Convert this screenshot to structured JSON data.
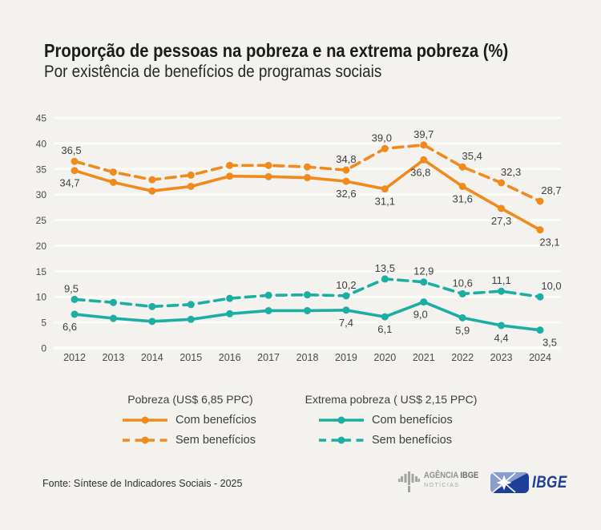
{
  "header": {
    "title": "Proporção de pessoas na pobreza e na extrema pobreza (%)",
    "subtitle": "Por existência de benefícios de programas sociais"
  },
  "colors": {
    "background": "#f3f2ef",
    "title_text": "#1b1b1b",
    "subtitle_text": "#262626",
    "grid_line": "#fbfbf8",
    "axis_text": "#4a4a4a",
    "value_label_text": "#3e3e3e",
    "poverty_orange": "#f18a1d",
    "extreme_teal": "#1cada3",
    "ibge_navy": "#1e3f97",
    "ibge_light": "#8b9cce",
    "agency_gray": "#8f8f8f",
    "agency_gray_dark": "#6d6d6d",
    "agency_gray_light": "#a3a3a3"
  },
  "chart_data": {
    "type": "line",
    "x": [
      "2012",
      "2013",
      "2014",
      "2015",
      "2016",
      "2017",
      "2018",
      "2019",
      "2020",
      "2021",
      "2022",
      "2023",
      "2024"
    ],
    "ylim": [
      0,
      45
    ],
    "ytick_step": 5,
    "grid": true,
    "legend_position": "bottom",
    "series": [
      {
        "name": "Pobreza (US$ 6,85 PPC) - Com benefícios",
        "color": "#f18a1d",
        "style": "solid",
        "label_pos": "below",
        "values": [
          34.7,
          32.4,
          30.7,
          31.6,
          33.6,
          33.5,
          33.3,
          32.6,
          31.1,
          36.8,
          31.6,
          27.3,
          23.1
        ],
        "point_labels": [
          {
            "i": 0,
            "t": "34,7",
            "dx": -6
          },
          {
            "i": 7,
            "t": "32,6"
          },
          {
            "i": 8,
            "t": "31,1"
          },
          {
            "i": 9,
            "t": "36,8",
            "dx": -4
          },
          {
            "i": 10,
            "t": "31,6"
          },
          {
            "i": 11,
            "t": "27,3"
          },
          {
            "i": 12,
            "t": "23,1",
            "dx": 12
          }
        ]
      },
      {
        "name": "Pobreza (US$ 6,85 PPC) - Sem benefícios",
        "color": "#f18a1d",
        "style": "dashed",
        "label_pos": "above",
        "values": [
          36.5,
          34.4,
          32.9,
          33.8,
          35.7,
          35.7,
          35.4,
          34.8,
          39.0,
          39.7,
          35.4,
          32.3,
          28.7
        ],
        "point_labels": [
          {
            "i": 0,
            "t": "36,5",
            "dx": -4
          },
          {
            "i": 7,
            "t": "34,8"
          },
          {
            "i": 8,
            "t": "39,0",
            "dx": -4
          },
          {
            "i": 9,
            "t": "39,7"
          },
          {
            "i": 10,
            "t": "35,4",
            "dx": 12
          },
          {
            "i": 11,
            "t": "32,3",
            "dx": 12
          },
          {
            "i": 12,
            "t": "28,7",
            "dx": 14
          }
        ]
      },
      {
        "name": "Extrema pobreza (US$ 2,15 PPC) - Com benefícios",
        "color": "#1cada3",
        "style": "solid",
        "label_pos": "below",
        "values": [
          6.6,
          5.8,
          5.2,
          5.6,
          6.7,
          7.3,
          7.3,
          7.4,
          6.1,
          9.0,
          5.9,
          4.4,
          3.5
        ],
        "point_labels": [
          {
            "i": 0,
            "t": "6,6",
            "dx": -6
          },
          {
            "i": 7,
            "t": "7,4"
          },
          {
            "i": 8,
            "t": "6,1"
          },
          {
            "i": 9,
            "t": "9,0",
            "dx": -4
          },
          {
            "i": 10,
            "t": "5,9"
          },
          {
            "i": 11,
            "t": "4,4"
          },
          {
            "i": 12,
            "t": "3,5",
            "dx": 12
          }
        ]
      },
      {
        "name": "Extrema pobreza (US$ 2,15 PPC) - Sem benefícios",
        "color": "#1cada3",
        "style": "dashed",
        "label_pos": "above",
        "values": [
          9.5,
          8.9,
          8.1,
          8.5,
          9.7,
          10.3,
          10.4,
          10.2,
          13.5,
          12.9,
          10.6,
          11.1,
          10.0
        ],
        "point_labels": [
          {
            "i": 0,
            "t": "9,5",
            "dx": -4
          },
          {
            "i": 7,
            "t": "10,2"
          },
          {
            "i": 8,
            "t": "13,5"
          },
          {
            "i": 9,
            "t": "12,9"
          },
          {
            "i": 10,
            "t": "10,6"
          },
          {
            "i": 11,
            "t": "11,1"
          },
          {
            "i": 12,
            "t": "10,0",
            "dx": 14
          }
        ]
      }
    ]
  },
  "legend": {
    "groups": [
      {
        "title": "Pobreza (US$ 6,85 PPC)",
        "items": [
          {
            "label": "Com benefícios",
            "series": 0
          },
          {
            "label": "Sem benefícios",
            "series": 1
          }
        ]
      },
      {
        "title": "Extrema pobreza ( US$ 2,15 PPC)",
        "items": [
          {
            "label": "Com benefícios",
            "series": 2
          },
          {
            "label": "Sem benefícios",
            "series": 3
          }
        ]
      }
    ]
  },
  "footer": {
    "source": "Fonte: Síntese de Indicadores Sociais - 2025",
    "agency_logo": {
      "line1_a": "AGÊNCIA",
      "line1_b": "IBGE",
      "line2": "NOTÍCIAS"
    },
    "ibge_logo": {
      "text": "IBGE"
    }
  }
}
